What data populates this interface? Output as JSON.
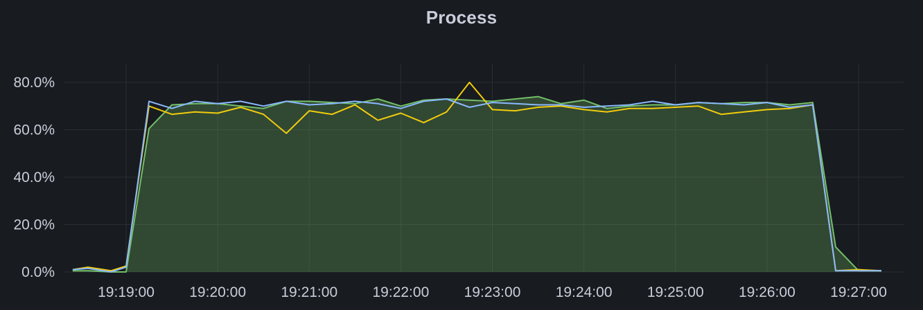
{
  "panel": {
    "title": "Process"
  },
  "chart_data": {
    "type": "line",
    "title": "Process",
    "xlabel": "",
    "ylabel": "",
    "ylim": [
      0,
      80
    ],
    "x_range": [
      "19:18:25",
      "19:27:15"
    ],
    "y_ticks": [
      "0.0%",
      "20.0%",
      "40.0%",
      "60.0%",
      "80.0%"
    ],
    "y_tick_values": [
      0,
      20,
      40,
      60,
      80
    ],
    "x_ticks": [
      "19:19:00",
      "19:20:00",
      "19:21:00",
      "19:22:00",
      "19:23:00",
      "19:24:00",
      "19:25:00",
      "19:26:00",
      "19:27:00"
    ],
    "grid": true,
    "legend": "none",
    "x": [
      "19:18:25",
      "19:18:35",
      "19:18:50",
      "19:19:00",
      "19:19:15",
      "19:19:30",
      "19:19:45",
      "19:20:00",
      "19:20:15",
      "19:20:30",
      "19:20:45",
      "19:21:00",
      "19:21:15",
      "19:21:30",
      "19:21:45",
      "19:22:00",
      "19:22:15",
      "19:22:30",
      "19:22:45",
      "19:23:00",
      "19:23:15",
      "19:23:30",
      "19:23:45",
      "19:24:00",
      "19:24:15",
      "19:24:30",
      "19:24:45",
      "19:25:00",
      "19:25:15",
      "19:25:30",
      "19:25:45",
      "19:26:00",
      "19:26:15",
      "19:26:30",
      "19:26:45",
      "19:27:00",
      "19:27:15"
    ],
    "series": [
      {
        "color": "#73bf69",
        "fill": true,
        "values": [
          0.5,
          0.5,
          0,
          0,
          60.5,
          70.5,
          71,
          71,
          70,
          69,
          72,
          72,
          71.5,
          71,
          73,
          70,
          72.5,
          73,
          72.5,
          72,
          73,
          74,
          71,
          72.5,
          69,
          70,
          70.5,
          70.5,
          71.5,
          71,
          71.5,
          71.5,
          70.5,
          71.5,
          10.5,
          0.5,
          0.5
        ]
      },
      {
        "color": "#f2cc0c",
        "fill": false,
        "values": [
          1,
          2,
          0.5,
          2.5,
          70,
          66.5,
          67.5,
          67,
          69.5,
          66.5,
          58.5,
          68,
          66.5,
          70.5,
          64,
          67,
          63,
          67.5,
          80,
          68.5,
          68,
          69.5,
          70,
          68.5,
          67.5,
          69,
          69,
          69.5,
          70,
          66.5,
          67.5,
          68.5,
          69,
          70.5,
          0.5,
          1,
          0.5
        ]
      },
      {
        "color": "#8ab8ff",
        "fill": false,
        "values": [
          1,
          1.5,
          0,
          2,
          72,
          69,
          72,
          71,
          72,
          70,
          72,
          70.5,
          71,
          72,
          71,
          69,
          72,
          73,
          69.5,
          71.5,
          71,
          70.5,
          70.5,
          69.5,
          70,
          70.5,
          72,
          70.5,
          71.5,
          71,
          70.5,
          71.5,
          69.5,
          70.5,
          0.5,
          0.5,
          0.5
        ]
      }
    ]
  }
}
